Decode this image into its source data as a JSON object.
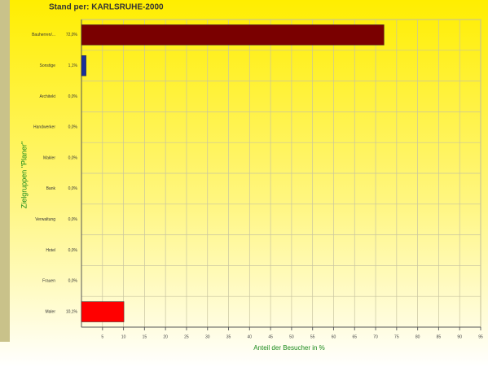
{
  "chart_data": {
    "type": "hbar",
    "subtitle": "Stand per: KARLSRUHE-2000",
    "y_label": "Zielgruppen \"Planer\"",
    "x_label": "Anteil der Besucher in %",
    "categories": [
      "Bauherren/...",
      "Sonstige",
      "Architekt",
      "Handwerker",
      "Makler",
      "Bank",
      "Verwaltung",
      "Hotel",
      "Frauen",
      "Maler"
    ],
    "values": [
      72.0,
      1.1,
      0.0,
      0.0,
      0.0,
      0.0,
      0.0,
      0.0,
      0.0,
      10.1
    ],
    "value_labels": [
      "72,0%",
      "1,1%",
      "0,0%",
      "0,0%",
      "0,0%",
      "0,0%",
      "0,0%",
      "0,0%",
      "0,0%",
      "10,1%"
    ],
    "colors": [
      "#7a0000",
      "#1a2f9a",
      "#7a0000",
      "#7a0000",
      "#7a0000",
      "#7a0000",
      "#7a0000",
      "#7a0000",
      "#7a0000",
      "#ff0000"
    ],
    "xlim": [
      0,
      95
    ],
    "xticks": [
      5,
      10,
      15,
      20,
      25,
      30,
      35,
      40,
      45,
      50,
      55,
      60,
      65,
      70,
      75,
      80,
      85,
      90,
      95
    ],
    "grid": true
  }
}
